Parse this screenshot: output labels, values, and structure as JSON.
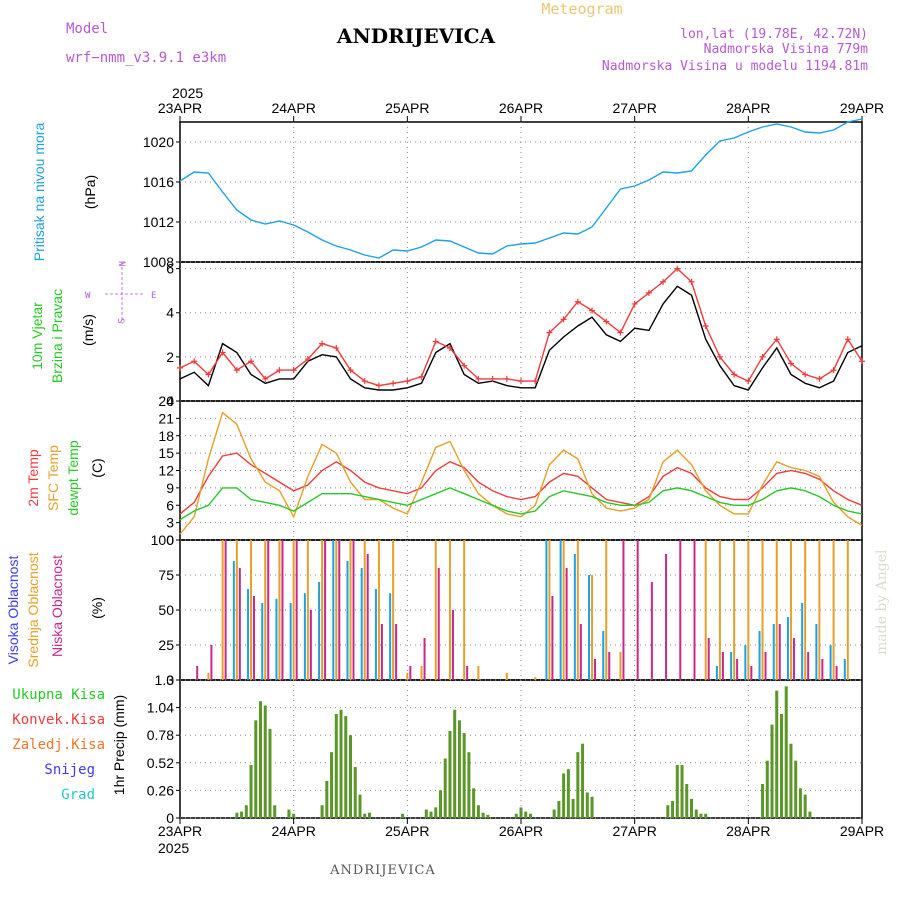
{
  "header": {
    "model_label": "Model",
    "model_name": "wrf−nmm_v3.9.1 e3km",
    "title": "ANDRIJEVICA",
    "meteogram": "Meteogram",
    "lonlat": "lon,lat (19.78E, 42.72N)",
    "elevation": "Nadmorska Visina 779m",
    "model_elevation": "Nadmorska Visina u modelu 1194.81m",
    "year_top": "2025",
    "year_bottom": "2025",
    "footer_title": "ANDRIJEVICA",
    "watermark": "made by Angel"
  },
  "colors": {
    "pressure": "#1ea0e6",
    "wind_line": "#000000",
    "wind_gust": "#f03c3c",
    "temp2m": "#f03c3c",
    "sfc": "#e6a028",
    "dew": "#28c828",
    "high_cloud": "#1ea0e6",
    "mid_cloud": "#e6a028",
    "low_cloud": "#c8288c",
    "precip": "#5a9628",
    "precip_conv": "#f03c3c",
    "precip_frozen": "#f07828",
    "precip_snow": "#3c3cf0",
    "precip_grad": "#28c8c8",
    "model_color": "#b45ad2",
    "lonlat_color": "#b45ad2"
  },
  "x_axis": {
    "dates": [
      "23APR",
      "24APR",
      "25APR",
      "26APR",
      "27APR",
      "28APR",
      "29APR"
    ],
    "range_hours": [
      0,
      144
    ]
  },
  "panels": {
    "pressure": {
      "ylabel_side": "Pritisak na nivou mora",
      "unit": "(hPa)",
      "ticks": [
        "1008",
        "1012",
        "1016",
        "1020"
      ]
    },
    "wind": {
      "ylabel_1": "10m Vjetar",
      "ylabel_2": "Brzina i Pravac",
      "unit": "(m/s)",
      "ticks": [
        "0",
        "2",
        "4",
        "6"
      ],
      "compass": {
        "n": "N",
        "s": "S",
        "e": "E",
        "w": "W"
      }
    },
    "temp": {
      "ylabel_1": "2m Temp",
      "ylabel_2": "SFC Temp",
      "ylabel_3": "dewpt Temp",
      "unit": "(C)",
      "ticks": [
        "0",
        "3",
        "6",
        "9",
        "12",
        "15",
        "18",
        "21",
        "24"
      ]
    },
    "cloud": {
      "ylabel_1": "Visoka Oblacnost",
      "ylabel_2": "Srednja Oblacnost",
      "ylabel_3": "Niska Oblacnost",
      "unit": "(%)",
      "ticks": [
        "0",
        "25",
        "50",
        "75",
        "100"
      ]
    },
    "precip": {
      "unit": "1hr Precip (mm)",
      "ticks": [
        "0",
        "0.26",
        "0.52",
        "0.78",
        "1.04",
        "1.3"
      ],
      "legend": [
        "Ukupna Kisa",
        "Konvek.Kisa",
        "Zaledj.Kisa",
        "Snijeg",
        "Grad"
      ]
    }
  },
  "chart_data": [
    {
      "type": "line",
      "title": "Pritisak na nivou mora",
      "ylabel": "hPa",
      "ylim": [
        1008,
        1022
      ],
      "x": [
        0,
        3,
        6,
        9,
        12,
        15,
        18,
        21,
        24,
        27,
        30,
        33,
        36,
        39,
        42,
        45,
        48,
        51,
        54,
        57,
        60,
        63,
        66,
        69,
        72,
        75,
        78,
        81,
        84,
        87,
        90,
        93,
        96,
        99,
        102,
        105,
        108,
        111,
        114,
        117,
        120,
        123,
        126,
        129,
        132,
        135,
        138,
        141,
        144
      ],
      "series": [
        {
          "name": "pressure",
          "values": [
            1016.1,
            1017.0,
            1016.9,
            1015.0,
            1013.2,
            1012.2,
            1011.8,
            1012.1,
            1011.7,
            1011.0,
            1010.2,
            1009.6,
            1009.2,
            1008.7,
            1008.4,
            1009.2,
            1009.1,
            1009.5,
            1010.2,
            1010.1,
            1009.5,
            1008.9,
            1008.8,
            1009.6,
            1009.8,
            1009.9,
            1010.4,
            1010.9,
            1010.8,
            1011.5,
            1013.4,
            1015.3,
            1015.6,
            1016.2,
            1017.0,
            1016.9,
            1017.1,
            1018.7,
            1020.1,
            1020.4,
            1021.0,
            1021.5,
            1021.8,
            1021.5,
            1021.0,
            1020.9,
            1021.2,
            1022.0,
            1022.3
          ]
        }
      ]
    },
    {
      "type": "line",
      "title": "10m Vjetar Brzina i Pravac",
      "ylabel": "m/s",
      "ylim": [
        0,
        6.3
      ],
      "x": [
        0,
        3,
        6,
        9,
        12,
        15,
        18,
        21,
        24,
        27,
        30,
        33,
        36,
        39,
        42,
        45,
        48,
        51,
        54,
        57,
        60,
        63,
        66,
        69,
        72,
        75,
        78,
        81,
        84,
        87,
        90,
        93,
        96,
        99,
        102,
        105,
        108,
        111,
        114,
        117,
        120,
        123,
        126,
        129,
        132,
        135,
        138,
        141,
        144
      ],
      "series": [
        {
          "name": "wind speed",
          "values": [
            1.0,
            1.3,
            0.7,
            2.6,
            2.2,
            1.2,
            0.8,
            1.0,
            1.0,
            1.8,
            2.1,
            2.0,
            1.0,
            0.6,
            0.5,
            0.5,
            0.6,
            0.8,
            2.2,
            2.6,
            1.2,
            0.8,
            0.9,
            0.7,
            0.6,
            0.6,
            2.3,
            2.9,
            3.4,
            3.8,
            3.0,
            2.7,
            3.3,
            3.2,
            4.4,
            5.2,
            4.8,
            2.8,
            1.6,
            0.7,
            0.5,
            1.5,
            2.4,
            1.2,
            0.8,
            0.6,
            0.9,
            2.2,
            2.5
          ]
        },
        {
          "name": "wind gust",
          "values": [
            1.5,
            1.8,
            1.2,
            2.2,
            1.4,
            1.8,
            1.0,
            1.4,
            1.4,
            1.9,
            2.6,
            2.4,
            1.4,
            0.9,
            0.7,
            0.8,
            0.9,
            1.1,
            2.7,
            2.4,
            1.6,
            1.0,
            1.0,
            1.0,
            0.9,
            0.9,
            3.1,
            3.7,
            4.5,
            4.1,
            3.6,
            3.1,
            4.4,
            4.9,
            5.4,
            6.0,
            5.4,
            3.4,
            2.0,
            1.2,
            0.9,
            2.0,
            2.8,
            1.7,
            1.2,
            1.0,
            1.4,
            2.8,
            1.8
          ]
        }
      ]
    },
    {
      "type": "line",
      "title": "2m Temp / SFC Temp / dewpt Temp",
      "ylabel": "C",
      "ylim": [
        0,
        24
      ],
      "x": [
        0,
        3,
        6,
        9,
        12,
        15,
        18,
        21,
        24,
        27,
        30,
        33,
        36,
        39,
        42,
        45,
        48,
        51,
        54,
        57,
        60,
        63,
        66,
        69,
        72,
        75,
        78,
        81,
        84,
        87,
        90,
        93,
        96,
        99,
        102,
        105,
        108,
        111,
        114,
        117,
        120,
        123,
        126,
        129,
        132,
        135,
        138,
        141,
        144
      ],
      "series": [
        {
          "name": "2m Temp",
          "values": [
            4.5,
            6.5,
            11.0,
            14.5,
            15.0,
            13.0,
            11.5,
            10.0,
            8.5,
            9.5,
            12.0,
            13.5,
            12.0,
            10.0,
            9.0,
            8.5,
            8.0,
            9.0,
            12.0,
            13.5,
            12.5,
            10.0,
            8.5,
            7.5,
            7.0,
            7.5,
            10.0,
            11.5,
            11.0,
            9.0,
            7.0,
            6.5,
            6.0,
            7.5,
            11.0,
            12.5,
            11.5,
            9.0,
            7.5,
            7.0,
            7.0,
            9.0,
            11.5,
            12.0,
            11.5,
            10.5,
            8.5,
            7.0,
            6.0
          ]
        },
        {
          "name": "SFC Temp",
          "values": [
            1.0,
            4.0,
            14.0,
            22.0,
            20.0,
            14.0,
            10.0,
            8.5,
            4.0,
            11.0,
            16.5,
            15.0,
            10.0,
            7.0,
            7.0,
            5.5,
            4.5,
            10.0,
            16.0,
            17.0,
            12.0,
            8.0,
            6.0,
            4.5,
            4.0,
            6.0,
            13.0,
            15.5,
            14.0,
            8.0,
            5.5,
            5.0,
            5.5,
            7.0,
            13.5,
            15.5,
            13.0,
            8.5,
            6.0,
            4.5,
            4.5,
            9.5,
            13.5,
            12.5,
            12.0,
            11.0,
            6.5,
            4.0,
            2.5
          ]
        },
        {
          "name": "dewpt Temp",
          "values": [
            3.5,
            5.0,
            6.0,
            9.0,
            9.0,
            7.0,
            6.5,
            6.0,
            5.0,
            6.5,
            8.0,
            8.0,
            8.0,
            7.5,
            7.0,
            6.5,
            6.0,
            7.0,
            8.0,
            9.0,
            8.0,
            7.0,
            6.0,
            5.0,
            4.5,
            5.0,
            7.5,
            8.5,
            8.0,
            7.5,
            6.5,
            6.0,
            6.0,
            6.5,
            8.5,
            9.0,
            8.5,
            7.5,
            6.5,
            6.0,
            6.0,
            7.0,
            8.5,
            9.0,
            8.5,
            7.5,
            6.0,
            5.0,
            4.5
          ]
        }
      ]
    },
    {
      "type": "bar",
      "title": "Visoka / Srednja / Niska Oblacnost",
      "ylabel": "%",
      "ylim": [
        0,
        100
      ],
      "x": [
        0,
        3,
        6,
        9,
        12,
        15,
        18,
        21,
        24,
        27,
        30,
        33,
        36,
        39,
        42,
        45,
        48,
        51,
        54,
        57,
        60,
        63,
        66,
        69,
        72,
        75,
        78,
        81,
        84,
        87,
        90,
        93,
        96,
        99,
        102,
        105,
        108,
        111,
        114,
        117,
        120,
        123,
        126,
        129,
        132,
        135,
        138,
        141,
        144
      ],
      "series": [
        {
          "name": "Visoka Oblacnost",
          "values": [
            0,
            0,
            0,
            0,
            85,
            65,
            55,
            58,
            55,
            62,
            70,
            100,
            85,
            80,
            65,
            62,
            0,
            0,
            0,
            0,
            0,
            0,
            0,
            0,
            0,
            0,
            100,
            100,
            90,
            75,
            35,
            0,
            0,
            0,
            0,
            0,
            0,
            0,
            10,
            20,
            25,
            35,
            40,
            45,
            55,
            40,
            25,
            15,
            0
          ]
        },
        {
          "name": "Srednja Oblacnost",
          "values": [
            0,
            0,
            5,
            100,
            100,
            100,
            100,
            100,
            100,
            100,
            100,
            100,
            100,
            100,
            100,
            100,
            5,
            10,
            100,
            100,
            100,
            10,
            0,
            5,
            0,
            2,
            100,
            100,
            100,
            75,
            100,
            20,
            0,
            0,
            0,
            0,
            0,
            100,
            100,
            100,
            100,
            100,
            100,
            100,
            100,
            100,
            100,
            100,
            0
          ]
        },
        {
          "name": "Niska Oblacnost",
          "values": [
            0,
            10,
            25,
            100,
            80,
            60,
            100,
            100,
            100,
            50,
            100,
            100,
            100,
            90,
            40,
            40,
            10,
            30,
            80,
            50,
            10,
            0,
            0,
            0,
            0,
            0,
            60,
            80,
            40,
            15,
            20,
            100,
            100,
            70,
            90,
            100,
            100,
            30,
            20,
            15,
            10,
            20,
            40,
            30,
            20,
            15,
            10,
            0,
            0
          ]
        }
      ]
    },
    {
      "type": "bar",
      "title": "1hr Precip",
      "ylabel": "mm",
      "ylim": [
        0,
        1.3
      ],
      "x": [
        12,
        13,
        14,
        15,
        16,
        17,
        18,
        19,
        20,
        23,
        24,
        30,
        31,
        32,
        33,
        34,
        35,
        36,
        37,
        38,
        39,
        40,
        47,
        52,
        53,
        54,
        55,
        56,
        57,
        58,
        59,
        60,
        61,
        62,
        63,
        64,
        65,
        71,
        72,
        73,
        74,
        79,
        80,
        81,
        82,
        83,
        84,
        85,
        86,
        87,
        103,
        104,
        105,
        106,
        107,
        108,
        109,
        110,
        111,
        123,
        124,
        125,
        126,
        127,
        128,
        129,
        130,
        131,
        132,
        133
      ],
      "series": [
        {
          "name": "Ukupna Kisa",
          "values": [
            0.05,
            0.06,
            0.12,
            0.5,
            0.92,
            1.1,
            1.06,
            0.84,
            0.12,
            0.08,
            0.04,
            0.12,
            0.35,
            0.62,
            0.98,
            1.02,
            0.96,
            0.78,
            0.48,
            0.22,
            0.04,
            0.05,
            0.04,
            0.08,
            0.06,
            0.1,
            0.26,
            0.56,
            0.82,
            1.02,
            0.92,
            0.8,
            0.62,
            0.28,
            0.12,
            0.05,
            0.03,
            0.04,
            0.1,
            0.06,
            0.04,
            0.08,
            0.16,
            0.42,
            0.46,
            0.18,
            0.62,
            0.7,
            0.24,
            0.2,
            0.12,
            0.16,
            0.5,
            0.5,
            0.32,
            0.18,
            0.08,
            0.04,
            0.04,
            0.32,
            0.54,
            0.88,
            1.2,
            0.98,
            1.24,
            0.7,
            0.54,
            0.28,
            0.22,
            0.06
          ]
        }
      ]
    }
  ]
}
